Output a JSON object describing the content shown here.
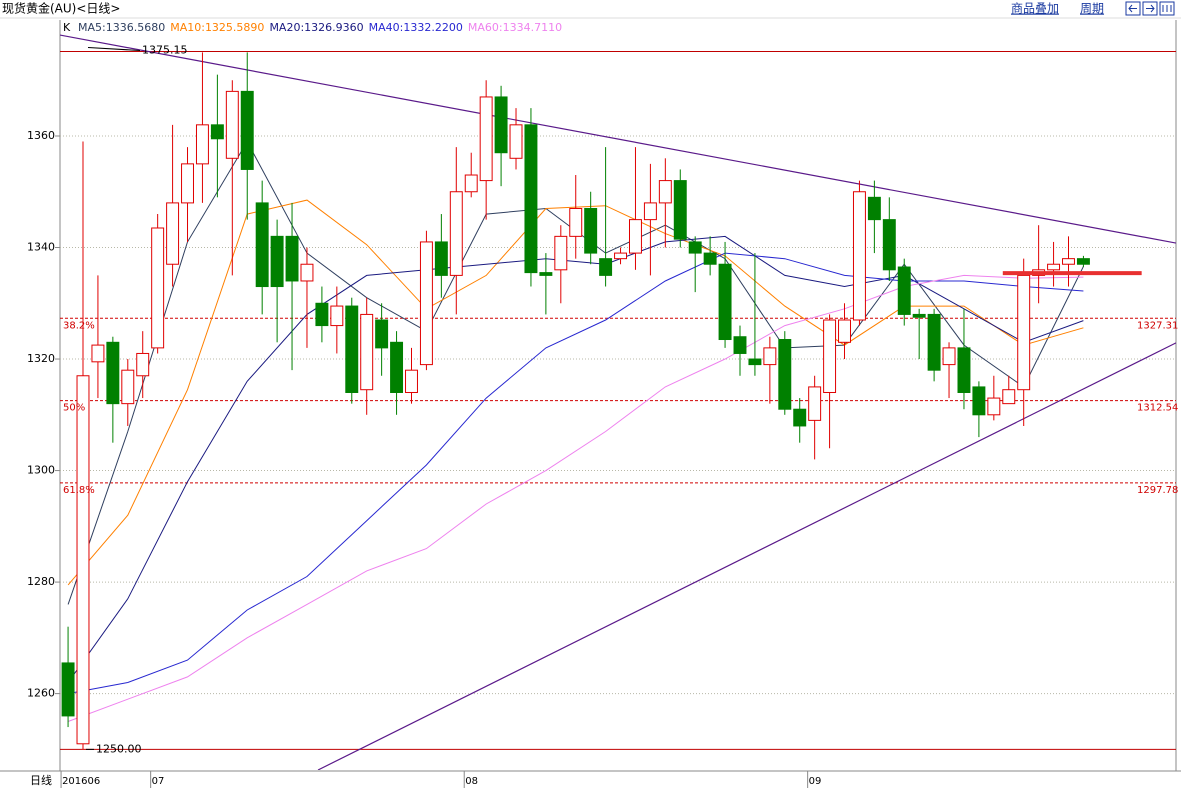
{
  "header": {
    "title": "现货黄金(AU)<日线>",
    "buttons": [
      "商品叠加",
      "周期"
    ]
  },
  "chart_data": {
    "type": "candlestick",
    "indicator_label": "K",
    "x_axis_label": "日线",
    "categories": [
      "201606",
      null,
      null,
      null,
      null,
      null,
      "07",
      null,
      null,
      null,
      null,
      null,
      null,
      null,
      null,
      null,
      null,
      null,
      null,
      null,
      null,
      null,
      null,
      null,
      null,
      null,
      null,
      "08",
      null,
      null,
      null,
      null,
      null,
      null,
      null,
      null,
      null,
      null,
      null,
      null,
      null,
      null,
      null,
      null,
      null,
      null,
      null,
      null,
      null,
      null,
      "09",
      null,
      null,
      null,
      null,
      null,
      null,
      null,
      null,
      null,
      null,
      null,
      null,
      null,
      null,
      null,
      null,
      null,
      null
    ],
    "open": [
      1265.5,
      1251,
      1319.5,
      1323,
      1312,
      1317,
      1322,
      1337,
      1348,
      1355,
      1362,
      1356,
      1368,
      1348,
      1342,
      1342,
      1334,
      1330,
      1326,
      1329.5,
      1314.5,
      1327,
      1323,
      1314,
      1319,
      1341,
      1335,
      1350,
      1352,
      1367,
      1356,
      1362,
      1335.5,
      1336,
      1342,
      1347,
      1338,
      1338,
      1339,
      1345,
      1348,
      1352,
      1341,
      1339,
      1337,
      1324,
      1320,
      1319,
      1323.5,
      1311,
      1309,
      1314,
      1323,
      1327,
      1349,
      1345,
      1336.5,
      1328,
      1328,
      1319,
      1322,
      1315,
      1310,
      1312,
      1314.5,
      1335,
      1336,
      1337,
      1338
    ],
    "high": [
      1272,
      1359,
      1335,
      1324,
      1320,
      1325,
      1346,
      1362,
      1358,
      1375,
      1371,
      1370,
      1375,
      1352,
      1345,
      1348,
      1340,
      1333,
      1333,
      1331,
      1331,
      1330,
      1325,
      1322,
      1343,
      1346,
      1358,
      1357,
      1370,
      1369,
      1365,
      1365,
      1339,
      1344,
      1353,
      1350,
      1358,
      1340,
      1358,
      1355,
      1356,
      1354,
      1342,
      1342,
      1341,
      1326,
      1339,
      1324,
      1325,
      1313,
      1317,
      1328,
      1330,
      1352,
      1352,
      1349,
      1338,
      1329,
      1329,
      1323,
      1329,
      1316,
      1317,
      1317,
      1338,
      1344,
      1341,
      1342,
      1338.5
    ],
    "low": [
      1254,
      1250,
      1313,
      1305,
      1308,
      1313,
      1321,
      1333,
      1341,
      1348,
      1349,
      1335,
      1345,
      1328,
      1323,
      1318,
      1322,
      1323,
      1321,
      1312,
      1310,
      1317,
      1310,
      1312,
      1318,
      1331,
      1328,
      1349,
      1345,
      1351,
      1354,
      1333,
      1328,
      1330,
      1338,
      1337,
      1333,
      1337,
      1336,
      1335,
      1340,
      1340,
      1332,
      1335,
      1322,
      1317,
      1317,
      1312,
      1310,
      1305,
      1302,
      1304,
      1320,
      1326,
      1339,
      1334,
      1326,
      1320,
      1316,
      1313,
      1311,
      1306,
      1309,
      1312,
      1308,
      1330,
      1333,
      1333,
      1336.5
    ],
    "close": [
      1256,
      1317,
      1322.5,
      1312,
      1318,
      1321,
      1343.5,
      1348,
      1355,
      1362,
      1359.5,
      1368,
      1354,
      1333,
      1333,
      1334,
      1337,
      1326,
      1329.5,
      1314,
      1328,
      1322,
      1314,
      1318,
      1341,
      1335,
      1350,
      1353,
      1367,
      1357,
      1362,
      1335.5,
      1335,
      1342,
      1347,
      1339,
      1335,
      1339,
      1345,
      1348,
      1352,
      1341.5,
      1339,
      1337,
      1323.5,
      1321,
      1319,
      1322,
      1311,
      1308,
      1315,
      1327,
      1327,
      1350,
      1345,
      1336,
      1328,
      1327.5,
      1318,
      1322,
      1314,
      1310,
      1313,
      1314.5,
      1335,
      1336,
      1337,
      1338,
      1337
    ],
    "up_color": "#e00000",
    "down_color": "#008000",
    "series": [
      {
        "name": "MA5:1336.5680",
        "color": "#2f3f5f",
        "x": [
          0,
          4,
          8,
          12,
          16,
          20,
          24,
          28,
          32,
          36,
          40,
          44,
          48,
          52,
          56,
          60,
          64,
          68
        ],
        "values": [
          1276,
          1307,
          1341,
          1359,
          1339,
          1331,
          1325,
          1346,
          1347,
          1339,
          1344,
          1338,
          1322,
          1322.5,
          1337,
          1322.5,
          1315,
          1336.6
        ]
      },
      {
        "name": "MA10:1325.5890",
        "color": "#ff8000",
        "x": [
          0,
          4,
          8,
          12,
          16,
          20,
          24,
          28,
          32,
          36,
          40,
          44,
          48,
          52,
          56,
          60,
          64,
          68
        ],
        "values": [
          1279.5,
          1292,
          1314.5,
          1346,
          1348.5,
          1340.5,
          1329,
          1335,
          1347,
          1347.5,
          1342.5,
          1338.5,
          1329.5,
          1322.5,
          1329.5,
          1329.5,
          1322.5,
          1325.6
        ]
      },
      {
        "name": "MA20:1326.9360",
        "color": "#1a1a80",
        "x": [
          0,
          4,
          8,
          12,
          16,
          20,
          24,
          28,
          32,
          36,
          40,
          44,
          48,
          52,
          56,
          60,
          64,
          68
        ],
        "values": [
          1262,
          1277,
          1298,
          1316,
          1328,
          1335,
          1336,
          1337,
          1338,
          1337,
          1341,
          1342,
          1335,
          1333,
          1335,
          1329,
          1323,
          1326.9
        ]
      },
      {
        "name": "MA40:1332.2200",
        "color": "#2828d0",
        "x": [
          0,
          4,
          8,
          12,
          16,
          20,
          24,
          28,
          32,
          36,
          40,
          44,
          48,
          52,
          56,
          60,
          64,
          68
        ],
        "values": [
          1260,
          1262,
          1266,
          1275,
          1281,
          1291,
          1301,
          1313,
          1322,
          1327,
          1334,
          1339,
          1338,
          1335,
          1334,
          1334,
          1333,
          1332.2
        ]
      },
      {
        "name": "MA60:1334.7110",
        "color": "#ee82ee",
        "x": [
          0,
          4,
          8,
          12,
          16,
          20,
          24,
          28,
          32,
          36,
          40,
          44,
          48,
          52,
          56,
          60,
          64,
          68
        ],
        "values": [
          1255,
          1259,
          1263,
          1270,
          1276,
          1282,
          1286,
          1294,
          1300,
          1307,
          1315,
          1320,
          1326,
          1329,
          1333,
          1335,
          1334.5,
          1334.7
        ]
      }
    ],
    "xlim": [
      -0.54,
      74.2
    ],
    "ylim": [
      1246.3,
      1380.8
    ],
    "yticks": [
      1260,
      1280,
      1300,
      1320,
      1340,
      1360
    ],
    "grid": true,
    "hlines": [
      {
        "value": 1375.15,
        "label": "1375.15",
        "color": "#c00000"
      },
      {
        "value": 1250,
        "label": "1250.00",
        "color": "#c00000"
      }
    ],
    "fib_levels": [
      {
        "name": "38.2%",
        "value": 1327.31
      },
      {
        "name": "50%",
        "value": 1312.54
      },
      {
        "name": "61.8%",
        "value": 1297.78
      }
    ],
    "fib_color": "#d00000",
    "trendlines": [
      {
        "x": [
          -0.54,
          74.2
        ],
        "values": [
          1378.1,
          1340.8
        ]
      },
      {
        "x": [
          16.74,
          74.2
        ],
        "values": [
          1246.3,
          1322.9
        ]
      }
    ],
    "trend_color": "#5a1a8a",
    "support": {
      "x": [
        62.6,
        71.9
      ],
      "value": 1335.4,
      "color": "#e83030"
    }
  }
}
